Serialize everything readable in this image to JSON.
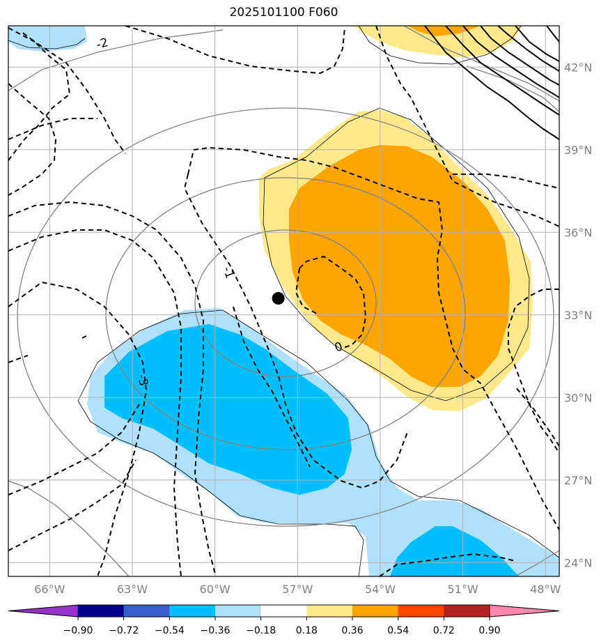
{
  "title": "2025101100 F060",
  "map": {
    "lon_min": -67.5,
    "lon_max": -47.5,
    "lat_min": 23.5,
    "lat_max": 43.5,
    "lon_ticks": [
      -66,
      -63,
      -60,
      -57,
      -54,
      -51,
      -48
    ],
    "lon_labels": [
      "66°W",
      "63°W",
      "60°W",
      "57°W",
      "54°W",
      "51°W",
      "48°W"
    ],
    "lat_ticks": [
      24,
      27,
      30,
      33,
      36,
      39,
      42
    ],
    "lat_labels": [
      "24°N",
      "27°N",
      "30°N",
      "33°N",
      "36°N",
      "39°N",
      "42°N"
    ],
    "storm_center": {
      "lon": -57.7,
      "lat": 33.6
    },
    "contour_labels": [
      "-2",
      "-1",
      "0",
      "-3"
    ]
  },
  "colorbar": {
    "levels": [
      "−0.90",
      "−0.72",
      "−0.54",
      "−0.36",
      "−0.18",
      "0.18",
      "0.36",
      "0.54",
      "0.72",
      "0.90"
    ],
    "colors": [
      "#9932cc",
      "#00008b",
      "#3a5fcd",
      "#00bfff",
      "#b0e0fa",
      "#ffffff",
      "#ffe98c",
      "#ffa500",
      "#ff4500",
      "#b22222",
      "#ff88b0"
    ]
  }
}
